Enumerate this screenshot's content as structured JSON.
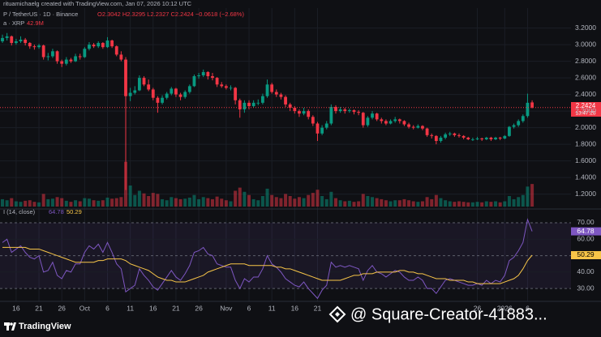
{
  "header": {
    "attribution": "rituamichaelg created with TradingView.com, Jan 07, 2026 10:12 UTC",
    "symbol": "P / TetherUS · 1D · Binance",
    "ohlc_text": "O2.3042 H2.3295 L2.2327 C2.2424 −0.0618 (−2.68%)",
    "volume_label": "a · XRP",
    "volume_value": "42.9M",
    "countdown": "13:47:28",
    "rsi_label": "I (14, close)"
  },
  "footer": {
    "logo": "TradingView",
    "watermark": "@ Square-Creator-41883..."
  },
  "chart_data": [
    {
      "type": "candlestick",
      "up_color": "#089981",
      "down_color": "#f23645",
      "ylim": [
        1.05,
        3.44
      ],
      "grid": true,
      "yticks": [
        {
          "value": 3.2,
          "label": "3.2000"
        },
        {
          "value": 3.0,
          "label": "3.0000"
        },
        {
          "value": 2.8,
          "label": "2.8000"
        },
        {
          "value": 2.6,
          "label": "2.6000"
        },
        {
          "value": 2.4,
          "label": "2.4000"
        },
        {
          "value": 2.2,
          "label": "2.2000"
        },
        {
          "value": 2.0,
          "label": "2.0000"
        },
        {
          "value": 1.8,
          "label": "1.8000"
        },
        {
          "value": 1.6,
          "label": "1.6000"
        },
        {
          "value": 1.4,
          "label": "1.4000"
        },
        {
          "value": 1.2,
          "label": "1.2000"
        }
      ],
      "xticks": [
        {
          "value": 3,
          "label": "16"
        },
        {
          "value": 8,
          "label": "21"
        },
        {
          "value": 13,
          "label": "26"
        },
        {
          "value": 18,
          "label": "Oct"
        },
        {
          "value": 23,
          "label": "6"
        },
        {
          "value": 28,
          "label": "11"
        },
        {
          "value": 33,
          "label": "16"
        },
        {
          "value": 38,
          "label": "21"
        },
        {
          "value": 43,
          "label": "26"
        },
        {
          "value": 49,
          "label": "Nov"
        },
        {
          "value": 54,
          "label": "6"
        },
        {
          "value": 59,
          "label": "11"
        },
        {
          "value": 64,
          "label": "16"
        },
        {
          "value": 69,
          "label": "21"
        },
        {
          "value": 104,
          "label": "26"
        },
        {
          "value": 110,
          "label": "2026"
        },
        {
          "value": 115,
          "label": "6"
        }
      ],
      "ohlc": [
        [
          3.04,
          3.12,
          3.02,
          3.08
        ],
        [
          3.08,
          3.14,
          3.05,
          3.1
        ],
        [
          3.1,
          3.11,
          2.99,
          3.02
        ],
        [
          3.02,
          3.07,
          3.0,
          3.04
        ],
        [
          3.04,
          3.1,
          3.02,
          3.06
        ],
        [
          3.06,
          3.08,
          2.99,
          3.02
        ],
        [
          3.02,
          3.03,
          2.95,
          2.98
        ],
        [
          2.98,
          3.0,
          2.94,
          2.97
        ],
        [
          2.97,
          3.01,
          2.95,
          2.99
        ],
        [
          2.99,
          3.0,
          2.82,
          2.85
        ],
        [
          2.85,
          2.9,
          2.81,
          2.86
        ],
        [
          2.86,
          2.95,
          2.84,
          2.92
        ],
        [
          2.92,
          2.93,
          2.77,
          2.8
        ],
        [
          2.8,
          2.82,
          2.73,
          2.77
        ],
        [
          2.77,
          2.85,
          2.75,
          2.82
        ],
        [
          2.82,
          2.84,
          2.78,
          2.8
        ],
        [
          2.8,
          2.89,
          2.79,
          2.86
        ],
        [
          2.86,
          2.89,
          2.82,
          2.85
        ],
        [
          2.85,
          2.97,
          2.84,
          2.95
        ],
        [
          2.95,
          3.03,
          2.93,
          3.0
        ],
        [
          3.0,
          3.02,
          2.96,
          2.98
        ],
        [
          2.98,
          3.04,
          2.96,
          3.02
        ],
        [
          3.02,
          3.03,
          2.95,
          2.97
        ],
        [
          2.97,
          3.09,
          2.96,
          3.05
        ],
        [
          3.05,
          3.06,
          2.96,
          2.98
        ],
        [
          2.98,
          2.99,
          2.86,
          2.88
        ],
        [
          2.88,
          2.92,
          2.8,
          2.82
        ],
        [
          2.82,
          2.85,
          1.25,
          2.38
        ],
        [
          2.38,
          2.48,
          2.32,
          2.42
        ],
        [
          2.42,
          2.5,
          2.4,
          2.45
        ],
        [
          2.45,
          2.63,
          2.44,
          2.6
        ],
        [
          2.6,
          2.62,
          2.5,
          2.52
        ],
        [
          2.52,
          2.58,
          2.44,
          2.46
        ],
        [
          2.46,
          2.48,
          2.33,
          2.36
        ],
        [
          2.36,
          2.38,
          2.18,
          2.3
        ],
        [
          2.3,
          2.39,
          2.28,
          2.36
        ],
        [
          2.36,
          2.43,
          2.34,
          2.41
        ],
        [
          2.41,
          2.49,
          2.39,
          2.47
        ],
        [
          2.47,
          2.48,
          2.37,
          2.4
        ],
        [
          2.4,
          2.42,
          2.33,
          2.37
        ],
        [
          2.37,
          2.45,
          2.35,
          2.43
        ],
        [
          2.43,
          2.52,
          2.41,
          2.5
        ],
        [
          2.5,
          2.64,
          2.49,
          2.62
        ],
        [
          2.62,
          2.66,
          2.59,
          2.63
        ],
        [
          2.63,
          2.7,
          2.61,
          2.67
        ],
        [
          2.67,
          2.68,
          2.58,
          2.62
        ],
        [
          2.62,
          2.66,
          2.57,
          2.6
        ],
        [
          2.6,
          2.61,
          2.49,
          2.52
        ],
        [
          2.52,
          2.55,
          2.48,
          2.5
        ],
        [
          2.5,
          2.52,
          2.46,
          2.48
        ],
        [
          2.48,
          2.51,
          2.45,
          2.48
        ],
        [
          2.48,
          2.49,
          2.28,
          2.33
        ],
        [
          2.33,
          2.35,
          2.12,
          2.22
        ],
        [
          2.22,
          2.33,
          2.18,
          2.3
        ],
        [
          2.3,
          2.33,
          2.22,
          2.26
        ],
        [
          2.26,
          2.33,
          2.24,
          2.3
        ],
        [
          2.3,
          2.34,
          2.27,
          2.3
        ],
        [
          2.3,
          2.41,
          2.28,
          2.38
        ],
        [
          2.38,
          2.58,
          2.36,
          2.52
        ],
        [
          2.52,
          2.54,
          2.41,
          2.43
        ],
        [
          2.43,
          2.46,
          2.37,
          2.4
        ],
        [
          2.4,
          2.42,
          2.34,
          2.37
        ],
        [
          2.37,
          2.39,
          2.25,
          2.28
        ],
        [
          2.28,
          2.3,
          2.2,
          2.24
        ],
        [
          2.24,
          2.26,
          2.17,
          2.2
        ],
        [
          2.2,
          2.22,
          2.13,
          2.17
        ],
        [
          2.17,
          2.24,
          2.15,
          2.2
        ],
        [
          2.2,
          2.22,
          2.1,
          2.13
        ],
        [
          2.13,
          2.15,
          2.02,
          2.05
        ],
        [
          2.05,
          2.07,
          1.84,
          1.93
        ],
        [
          1.93,
          2.03,
          1.91,
          2.0
        ],
        [
          2.0,
          2.08,
          1.98,
          2.05
        ],
        [
          2.05,
          2.28,
          2.03,
          2.25
        ],
        [
          2.25,
          2.27,
          2.17,
          2.2
        ],
        [
          2.2,
          2.25,
          2.18,
          2.22
        ],
        [
          2.22,
          2.24,
          2.17,
          2.2
        ],
        [
          2.2,
          2.23,
          2.18,
          2.21
        ],
        [
          2.21,
          2.22,
          2.16,
          2.19
        ],
        [
          2.19,
          2.21,
          2.15,
          2.18
        ],
        [
          2.18,
          2.19,
          2.0,
          2.03
        ],
        [
          2.03,
          2.14,
          2.01,
          2.12
        ],
        [
          2.12,
          2.2,
          2.1,
          2.17
        ],
        [
          2.17,
          2.18,
          2.08,
          2.1
        ],
        [
          2.1,
          2.12,
          2.05,
          2.08
        ],
        [
          2.08,
          2.1,
          2.03,
          2.05
        ],
        [
          2.05,
          2.1,
          2.04,
          2.08
        ],
        [
          2.08,
          2.13,
          2.06,
          2.1
        ],
        [
          2.1,
          2.11,
          2.05,
          2.08
        ],
        [
          2.08,
          2.09,
          2.02,
          2.04
        ],
        [
          2.04,
          2.06,
          1.99,
          2.01
        ],
        [
          2.01,
          2.03,
          1.98,
          2.0
        ],
        [
          2.0,
          2.04,
          1.99,
          2.02
        ],
        [
          2.02,
          2.03,
          1.97,
          1.99
        ],
        [
          1.99,
          2.0,
          1.89,
          1.91
        ],
        [
          1.91,
          1.93,
          1.87,
          1.9
        ],
        [
          1.9,
          1.91,
          1.8,
          1.84
        ],
        [
          1.84,
          1.9,
          1.82,
          1.88
        ],
        [
          1.88,
          1.94,
          1.86,
          1.92
        ],
        [
          1.92,
          1.95,
          1.9,
          1.93
        ],
        [
          1.93,
          1.94,
          1.89,
          1.91
        ],
        [
          1.91,
          1.93,
          1.88,
          1.9
        ],
        [
          1.9,
          1.91,
          1.86,
          1.88
        ],
        [
          1.88,
          1.89,
          1.85,
          1.86
        ],
        [
          1.86,
          1.88,
          1.84,
          1.86
        ],
        [
          1.86,
          1.89,
          1.85,
          1.87
        ],
        [
          1.87,
          1.88,
          1.84,
          1.86
        ],
        [
          1.86,
          1.89,
          1.85,
          1.88
        ],
        [
          1.88,
          1.89,
          1.84,
          1.86
        ],
        [
          1.86,
          1.89,
          1.85,
          1.88
        ],
        [
          1.88,
          1.89,
          1.85,
          1.87
        ],
        [
          1.87,
          1.91,
          1.86,
          1.9
        ],
        [
          1.9,
          2.02,
          1.89,
          2.01
        ],
        [
          2.01,
          2.05,
          1.99,
          2.03
        ],
        [
          2.03,
          2.1,
          2.01,
          2.08
        ],
        [
          2.08,
          2.16,
          2.06,
          2.14
        ],
        [
          2.14,
          2.41,
          2.12,
          2.3
        ],
        [
          2.3042,
          2.3295,
          2.2327,
          2.2424
        ]
      ],
      "volume": [
        14,
        12,
        16,
        10,
        9,
        11,
        12,
        9,
        8,
        24,
        14,
        15,
        18,
        16,
        11,
        9,
        12,
        10,
        16,
        15,
        12,
        11,
        12,
        17,
        15,
        16,
        18,
        85,
        40,
        22,
        30,
        25,
        20,
        26,
        24,
        14,
        12,
        18,
        16,
        14,
        15,
        17,
        22,
        14,
        18,
        16,
        14,
        19,
        15,
        12,
        10,
        30,
        36,
        28,
        22,
        14,
        12,
        20,
        34,
        22,
        18,
        16,
        24,
        20,
        15,
        18,
        16,
        22,
        26,
        32,
        20,
        14,
        28,
        16,
        12,
        10,
        11,
        9,
        10,
        24,
        20,
        18,
        16,
        14,
        12,
        10,
        12,
        12,
        14,
        12,
        10,
        9,
        10,
        18,
        14,
        22,
        16,
        12,
        10,
        9,
        10,
        9,
        8,
        8,
        9,
        8,
        10,
        9,
        10,
        8,
        10,
        20,
        14,
        18,
        22,
        38,
        42.9
      ]
    },
    {
      "type": "line",
      "ylim": [
        22.2,
        76.4
      ],
      "yticks": [
        {
          "value": 70,
          "label": "70.00"
        },
        {
          "value": 60,
          "label": "60.00"
        },
        {
          "value": 50,
          "label": "50.00"
        },
        {
          "value": 40,
          "label": "40.00"
        },
        {
          "value": 30,
          "label": "30.00"
        }
      ],
      "series": [
        {
          "color": "#7e57c2",
          "values": [
            58,
            60,
            52,
            54,
            56,
            52,
            49,
            48,
            50,
            40,
            41,
            46,
            38,
            36,
            41,
            40,
            45,
            45,
            52,
            56,
            54,
            57,
            52,
            58,
            52,
            45,
            42,
            28,
            30,
            32,
            42,
            38,
            35,
            31,
            29,
            33,
            37,
            41,
            37,
            35,
            39,
            44,
            52,
            53,
            55,
            51,
            50,
            45,
            44,
            43,
            43,
            35,
            30,
            36,
            34,
            37,
            37,
            42,
            50,
            45,
            43,
            40,
            36,
            34,
            32,
            31,
            34,
            30,
            27,
            24,
            29,
            32,
            46,
            43,
            44,
            43,
            44,
            43,
            42,
            35,
            41,
            44,
            40,
            39,
            37,
            39,
            41,
            40,
            37,
            35,
            35,
            37,
            35,
            30,
            30,
            27,
            31,
            35,
            36,
            35,
            34,
            33,
            32,
            32,
            33,
            32,
            35,
            33,
            35,
            34,
            38,
            47,
            49,
            53,
            58,
            72,
            64.78
          ]
        },
        {
          "color": "#f7c548",
          "values": [
            55,
            55,
            55,
            55,
            55,
            55,
            54,
            54,
            54,
            53,
            52,
            51,
            50,
            49,
            48,
            47,
            46,
            46,
            46,
            46,
            46,
            47,
            47,
            48,
            48,
            48,
            48,
            47,
            45,
            44,
            43,
            42,
            41,
            39,
            37,
            36,
            35,
            35,
            34,
            34,
            34,
            35,
            36,
            37,
            38,
            40,
            41,
            42,
            43,
            44,
            45,
            45,
            45,
            45,
            44,
            44,
            44,
            44,
            44,
            44,
            43,
            43,
            42,
            42,
            41,
            40,
            39,
            38,
            37,
            36,
            35,
            35,
            35,
            35,
            35,
            36,
            37,
            38,
            38,
            39,
            39,
            39,
            40,
            40,
            40,
            40,
            40,
            41,
            41,
            40,
            40,
            39,
            39,
            38,
            37,
            36,
            36,
            36,
            35,
            35,
            35,
            35,
            34,
            34,
            33,
            33,
            33,
            33,
            33,
            33,
            34,
            35,
            36,
            38,
            42,
            47,
            50.29
          ]
        }
      ]
    }
  ]
}
